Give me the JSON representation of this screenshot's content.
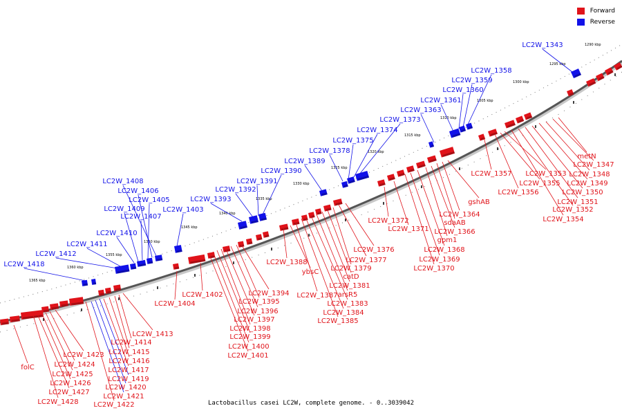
{
  "colors": {
    "forward": "#e0131a",
    "reverse": "#1111e8",
    "backbone": "#808080"
  },
  "legend": {
    "forward_label": "Forward",
    "reverse_label": "Reverse"
  },
  "caption": "Lactobacillus casei LC2W, complete genome. - 0..3039042",
  "ticks": [
    "1290 kbp",
    "1295 kbp",
    "1300 kbp",
    "1305 kbp",
    "1310 kbp",
    "1315 kbp",
    "1320 kbp",
    "1325 kbp",
    "1330 kbp",
    "1335 kbp",
    "1340 kbp",
    "1345 kbp",
    "1350 kbp",
    "1355 kbp",
    "1360 kbp",
    "1365 kbp"
  ],
  "labels_top": [
    "LC2W_1343",
    "LC2W_1358",
    "LC2W_1359",
    "LC2W_1360",
    "LC2W_1361",
    "LC2W_1363",
    "LC2W_1373",
    "LC2W_1374",
    "LC2W_1375",
    "LC2W_1378",
    "LC2W_1389",
    "LC2W_1390",
    "LC2W_1391",
    "LC2W_1392",
    "LC2W_1393",
    "LC2W_1403",
    "LC2W_1408",
    "LC2W_1406",
    "LC2W_1405",
    "LC2W_1409",
    "LC2W_1407",
    "LC2W_1410",
    "LC2W_1411",
    "LC2W_1412",
    "LC2W_1418"
  ],
  "labels_bottom_red": [
    "metN",
    "LC2W_1347",
    "LC2W_1348",
    "LC2W_1349",
    "LC2W_1350",
    "LC2W_1351",
    "LC2W_1352",
    "LC2W_1354",
    "LC2W_1353",
    "LC2W_1355",
    "LC2W_1356",
    "LC2W_1357",
    "gshAB",
    "LC2W_1364",
    "sdaAB",
    "LC2W_1366",
    "gpm1",
    "LC2W_1368",
    "LC2W_1369",
    "LC2W_1370",
    "LC2W_1372",
    "LC2W_1371",
    "LC2W_1376",
    "LC2W_1377",
    "LC2W_1379",
    "catD",
    "LC2W_1381",
    "arsR5",
    "LC2W_1383",
    "LC2W_1384",
    "LC2W_1385",
    "LC2W_1387",
    "ybsC",
    "LC2W_1388",
    "LC2W_1394",
    "LC2W_1395",
    "LC2W_1396",
    "LC2W_1397",
    "LC2W_1398",
    "LC2W_1399",
    "LC2W_1400",
    "LC2W_1401",
    "LC2W_1402",
    "LC2W_1404",
    "LC2W_1413",
    "LC2W_1414",
    "LC2W_1415",
    "LC2W_1416",
    "LC2W_1417",
    "LC2W_1419",
    "LC2W_1420",
    "LC2W_1421",
    "LC2W_1422",
    "LC2W_1423",
    "LC2W_1424",
    "LC2W_1425",
    "LC2W_1426",
    "LC2W_1427",
    "LC2W_1428",
    "folC"
  ]
}
